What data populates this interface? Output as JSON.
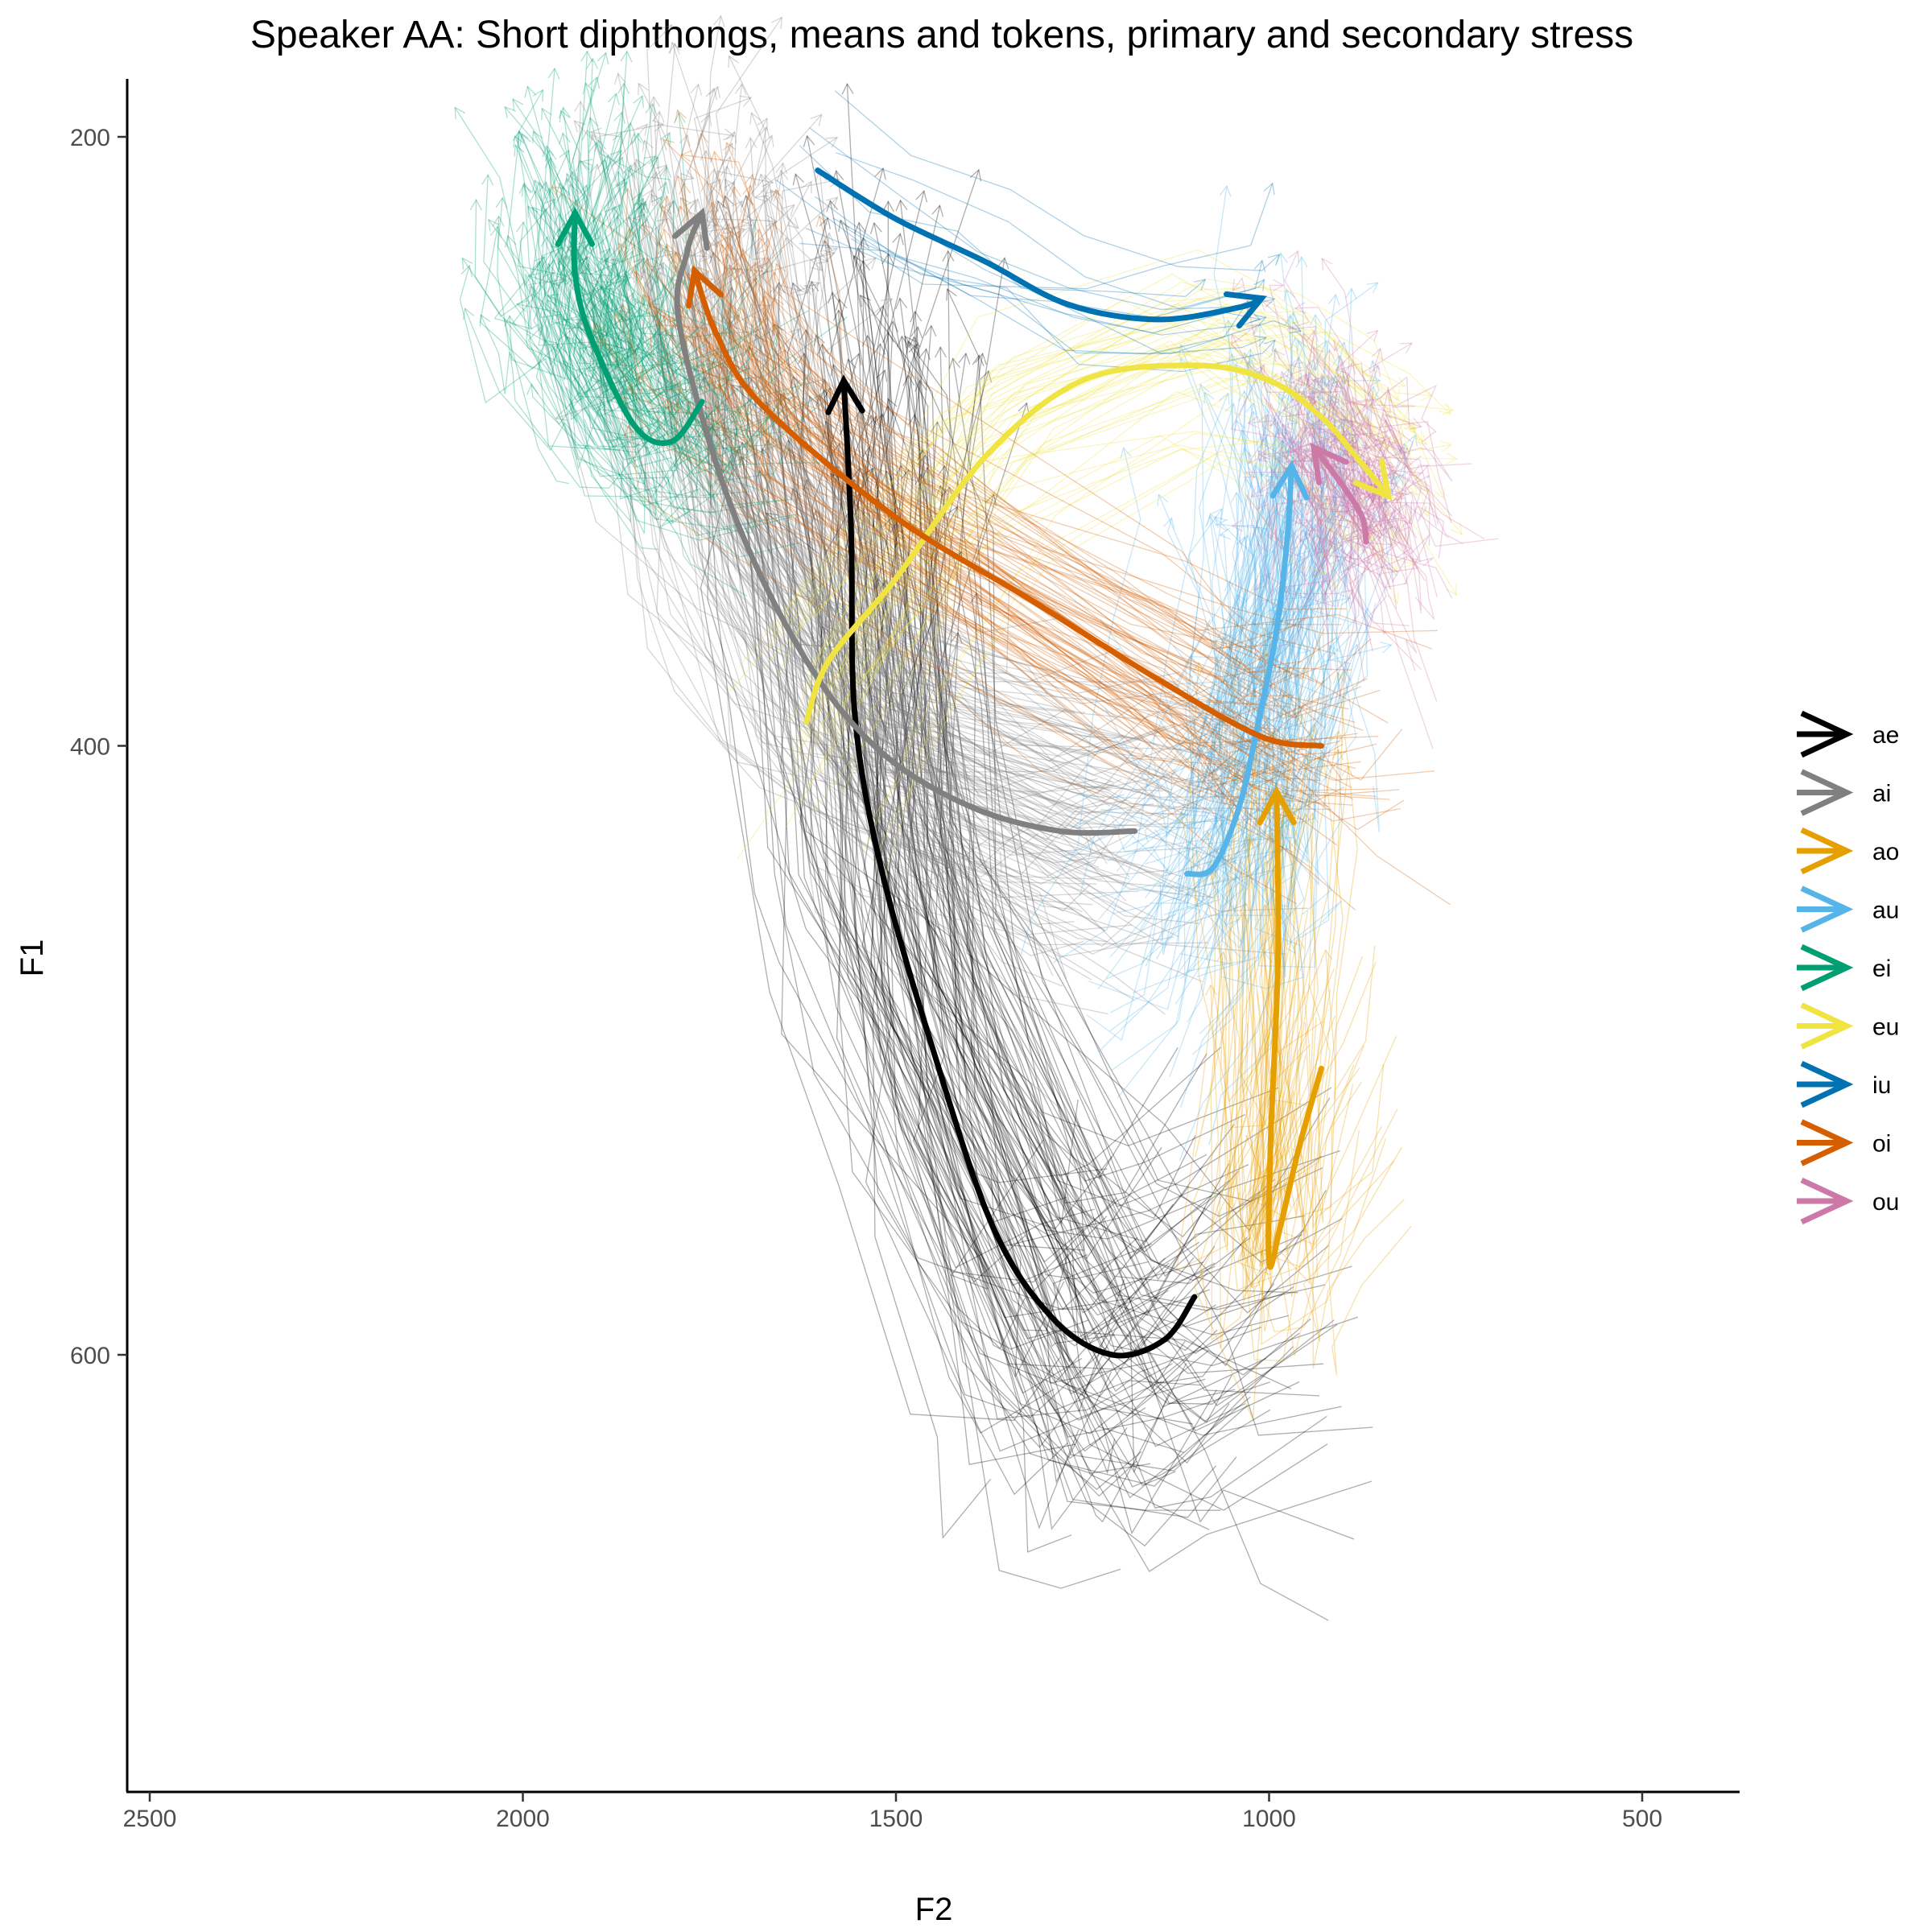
{
  "chart_data": {
    "type": "line",
    "title": "Speaker AA: Short diphthongs, means and tokens, primary and secondary stress",
    "xlabel": "F2",
    "ylabel": "F1",
    "x_reversed": true,
    "y_reversed": true,
    "xlim": [
      2530,
      370
    ],
    "ylim": [
      180,
      740
    ],
    "x_ticks": [
      2500,
      2000,
      1500,
      1000,
      500
    ],
    "y_ticks": [
      200,
      400,
      600
    ],
    "grid": false,
    "legend_position": "right",
    "series": [
      {
        "name": "ae",
        "color": "#000000",
        "mean": [
          [
            1100,
            581
          ],
          [
            1140,
            595
          ],
          [
            1210,
            600
          ],
          [
            1290,
            588
          ],
          [
            1370,
            558
          ],
          [
            1450,
            500
          ],
          [
            1520,
            440
          ],
          [
            1555,
            390
          ],
          [
            1560,
            330
          ],
          [
            1570,
            280
          ]
        ],
        "start": [
          1100,
          581
        ],
        "end": [
          1570,
          280
        ],
        "token_count": 140,
        "token_spread": [
          160,
          55
        ]
      },
      {
        "name": "ai",
        "color": "#808080",
        "mean": [
          [
            1180,
            428
          ],
          [
            1280,
            428
          ],
          [
            1400,
            420
          ],
          [
            1520,
            402
          ],
          [
            1620,
            372
          ],
          [
            1720,
            322
          ],
          [
            1790,
            262
          ],
          [
            1780,
            238
          ],
          [
            1760,
            225
          ]
        ],
        "start": [
          1180,
          428
        ],
        "end": [
          1760,
          225
        ],
        "token_count": 150,
        "token_spread": [
          150,
          45
        ]
      },
      {
        "name": "ao",
        "color": "#E69F00",
        "mean": [
          [
            930,
            506
          ],
          [
            960,
            532
          ],
          [
            985,
            558
          ],
          [
            1000,
            570
          ],
          [
            998,
            530
          ],
          [
            988,
            470
          ],
          [
            990,
            415
          ]
        ],
        "start": [
          930,
          506
        ],
        "end": [
          990,
          415
        ],
        "token_count": 60,
        "token_spread": [
          90,
          45
        ]
      },
      {
        "name": "au",
        "color": "#56B4E9",
        "mean": [
          [
            1110,
            442
          ],
          [
            1075,
            440
          ],
          [
            1040,
            420
          ],
          [
            1015,
            393
          ],
          [
            990,
            362
          ],
          [
            975,
            330
          ],
          [
            970,
            308
          ]
        ],
        "start": [
          1110,
          442
        ],
        "end": [
          970,
          308
        ],
        "token_count": 170,
        "token_spread": [
          110,
          50
        ]
      },
      {
        "name": "ei",
        "color": "#009E73",
        "mean": [
          [
            1760,
            287
          ],
          [
            1800,
            300
          ],
          [
            1850,
            295
          ],
          [
            1910,
            265
          ],
          [
            1930,
            245
          ],
          [
            1930,
            225
          ]
        ],
        "start": [
          1760,
          287
        ],
        "end": [
          1930,
          225
        ],
        "token_count": 150,
        "token_spread": [
          110,
          35
        ]
      },
      {
        "name": "eu",
        "color": "#F0E442",
        "mean": [
          [
            1620,
            392
          ],
          [
            1590,
            372
          ],
          [
            1500,
            345
          ],
          [
            1380,
            305
          ],
          [
            1250,
            280
          ],
          [
            1100,
            275
          ],
          [
            1000,
            280
          ],
          [
            930,
            292
          ],
          [
            880,
            306
          ],
          [
            840,
            318
          ]
        ],
        "start": [
          1620,
          392
        ],
        "end": [
          840,
          318
        ],
        "token_count": 50,
        "token_spread": [
          80,
          30
        ]
      },
      {
        "name": "iu",
        "color": "#0072B2",
        "mean": [
          [
            1605,
            211
          ],
          [
            1500,
            227
          ],
          [
            1380,
            241
          ],
          [
            1270,
            255
          ],
          [
            1150,
            260
          ],
          [
            1040,
            256
          ],
          [
            1010,
            253
          ]
        ],
        "start": [
          1605,
          211
        ],
        "end": [
          1010,
          253
        ],
        "token_count": 12,
        "token_spread": [
          40,
          20
        ]
      },
      {
        "name": "oi",
        "color": "#D55E00",
        "mean": [
          [
            930,
            400
          ],
          [
            1010,
            397
          ],
          [
            1150,
            378
          ],
          [
            1320,
            352
          ],
          [
            1500,
            325
          ],
          [
            1680,
            288
          ],
          [
            1740,
            265
          ],
          [
            1770,
            244
          ]
        ],
        "start": [
          930,
          400
        ],
        "end": [
          1770,
          244
        ],
        "token_count": 90,
        "token_spread": [
          110,
          35
        ]
      },
      {
        "name": "ou",
        "color": "#CC79A7",
        "mean": [
          [
            870,
            333
          ],
          [
            875,
            325
          ],
          [
            900,
            315
          ],
          [
            940,
            302
          ]
        ],
        "start": [
          870,
          333
        ],
        "end": [
          940,
          302
        ],
        "token_count": 130,
        "token_spread": [
          90,
          35
        ]
      }
    ]
  }
}
